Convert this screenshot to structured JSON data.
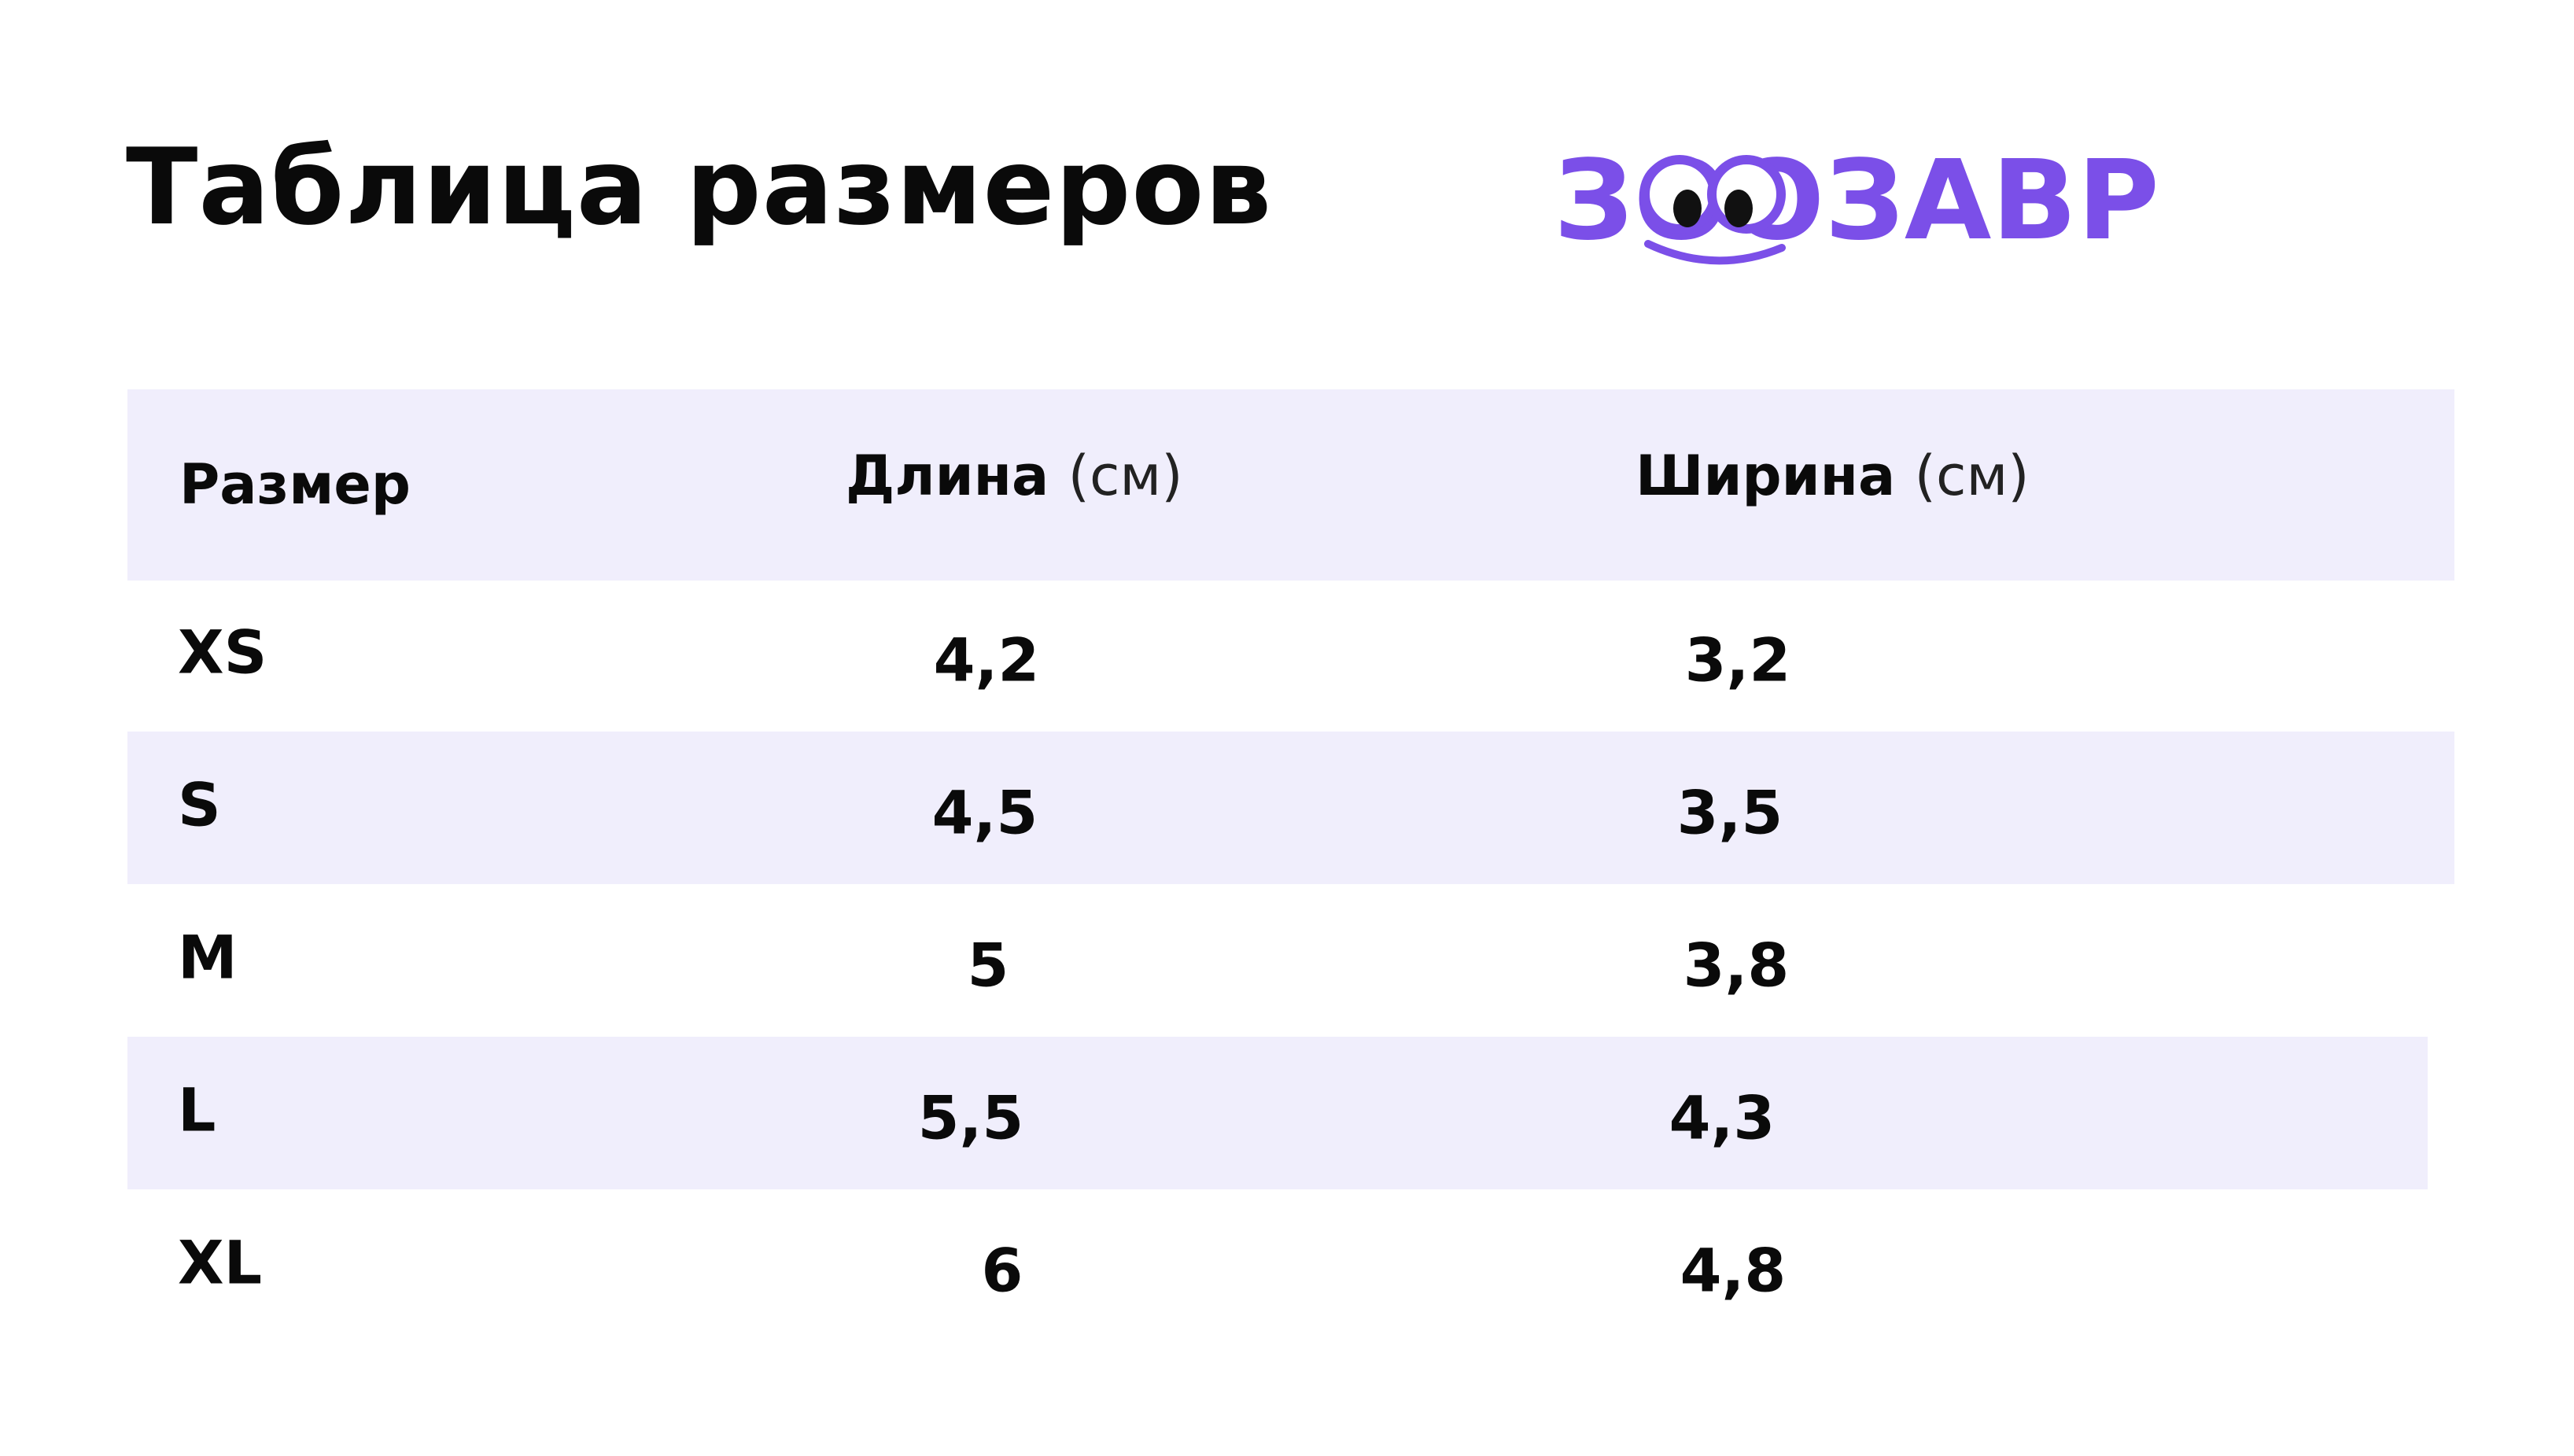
{
  "header": {
    "title": "Таблица размеров",
    "logo": "ЗООЗАВР"
  },
  "table": {
    "columns": [
      {
        "label": "Размер"
      },
      {
        "label": "Длина",
        "unit": "(см)"
      },
      {
        "label": "Ширина",
        "unit": "(см)"
      }
    ],
    "rows": [
      [
        "XS",
        "4,2",
        "3,2"
      ],
      [
        "S",
        "4,5",
        "3,5"
      ],
      [
        "M",
        "5",
        "3,8"
      ],
      [
        "L",
        "5,5",
        "4,3"
      ],
      [
        "XL",
        "6",
        "4,8"
      ]
    ]
  }
}
